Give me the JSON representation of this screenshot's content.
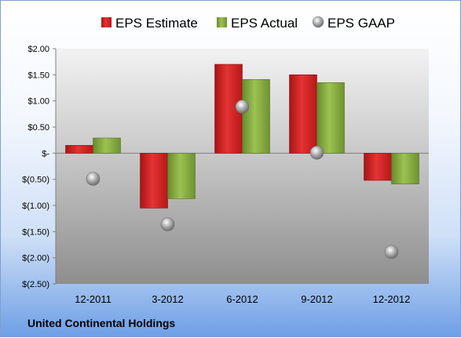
{
  "chart_data": {
    "type": "bar",
    "categories": [
      "12-2011",
      "3-2012",
      "6-2012",
      "9-2012",
      "12-2012"
    ],
    "series": [
      {
        "name": "EPS Estimate",
        "kind": "bar",
        "color": "#cc1f1f",
        "values": [
          0.15,
          -1.05,
          1.7,
          1.5,
          -0.52
        ]
      },
      {
        "name": "EPS Actual",
        "kind": "bar",
        "color": "#7fa23a",
        "values": [
          0.29,
          -0.87,
          1.41,
          1.35,
          -0.59
        ]
      },
      {
        "name": "EPS GAAP",
        "kind": "marker",
        "color": "#8c8c8c",
        "values": [
          -0.49,
          -1.36,
          0.89,
          0.01,
          -1.89
        ]
      }
    ],
    "y_ticks": [
      "$2.00",
      "$1.50",
      "$1.00",
      "$0.50",
      "$-",
      "$(0.50)",
      "$(1.00)",
      "$(1.50)",
      "$(2.00)",
      "$(2.50)"
    ],
    "ylim": [
      -2.5,
      2.0
    ],
    "legend_position": "top",
    "grid": false
  },
  "company": "United Continental Holdings"
}
